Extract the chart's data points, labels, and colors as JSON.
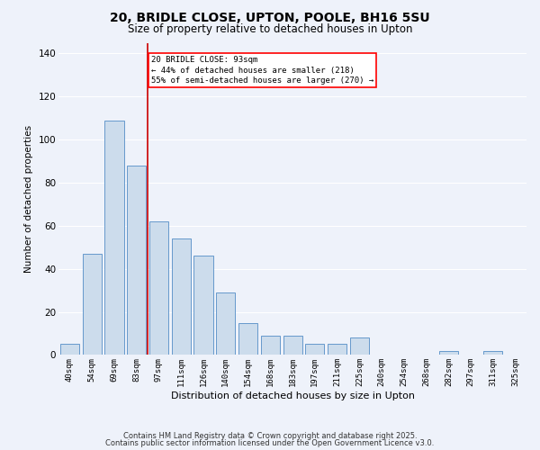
{
  "title": "20, BRIDLE CLOSE, UPTON, POOLE, BH16 5SU",
  "subtitle": "Size of property relative to detached houses in Upton",
  "xlabel": "Distribution of detached houses by size in Upton",
  "ylabel": "Number of detached properties",
  "bar_color": "#ccdcec",
  "bar_edgecolor": "#6699cc",
  "background_color": "#eef2fa",
  "grid_color": "#ffffff",
  "categories": [
    "40sqm",
    "54sqm",
    "69sqm",
    "83sqm",
    "97sqm",
    "111sqm",
    "126sqm",
    "140sqm",
    "154sqm",
    "168sqm",
    "183sqm",
    "197sqm",
    "211sqm",
    "225sqm",
    "240sqm",
    "254sqm",
    "268sqm",
    "282sqm",
    "297sqm",
    "311sqm",
    "325sqm"
  ],
  "values": [
    5,
    47,
    109,
    88,
    62,
    54,
    46,
    29,
    15,
    9,
    9,
    5,
    5,
    8,
    0,
    0,
    0,
    2,
    0,
    2,
    0
  ],
  "ylim": [
    0,
    145
  ],
  "yticks": [
    0,
    20,
    40,
    60,
    80,
    100,
    120,
    140
  ],
  "marker_label": "20 BRIDLE CLOSE: 93sqm",
  "annotation_line1": "← 44% of detached houses are smaller (218)",
  "annotation_line2": "55% of semi-detached houses are larger (270) →",
  "marker_color": "#cc0000",
  "footnote1": "Contains HM Land Registry data © Crown copyright and database right 2025.",
  "footnote2": "Contains public sector information licensed under the Open Government Licence v3.0."
}
